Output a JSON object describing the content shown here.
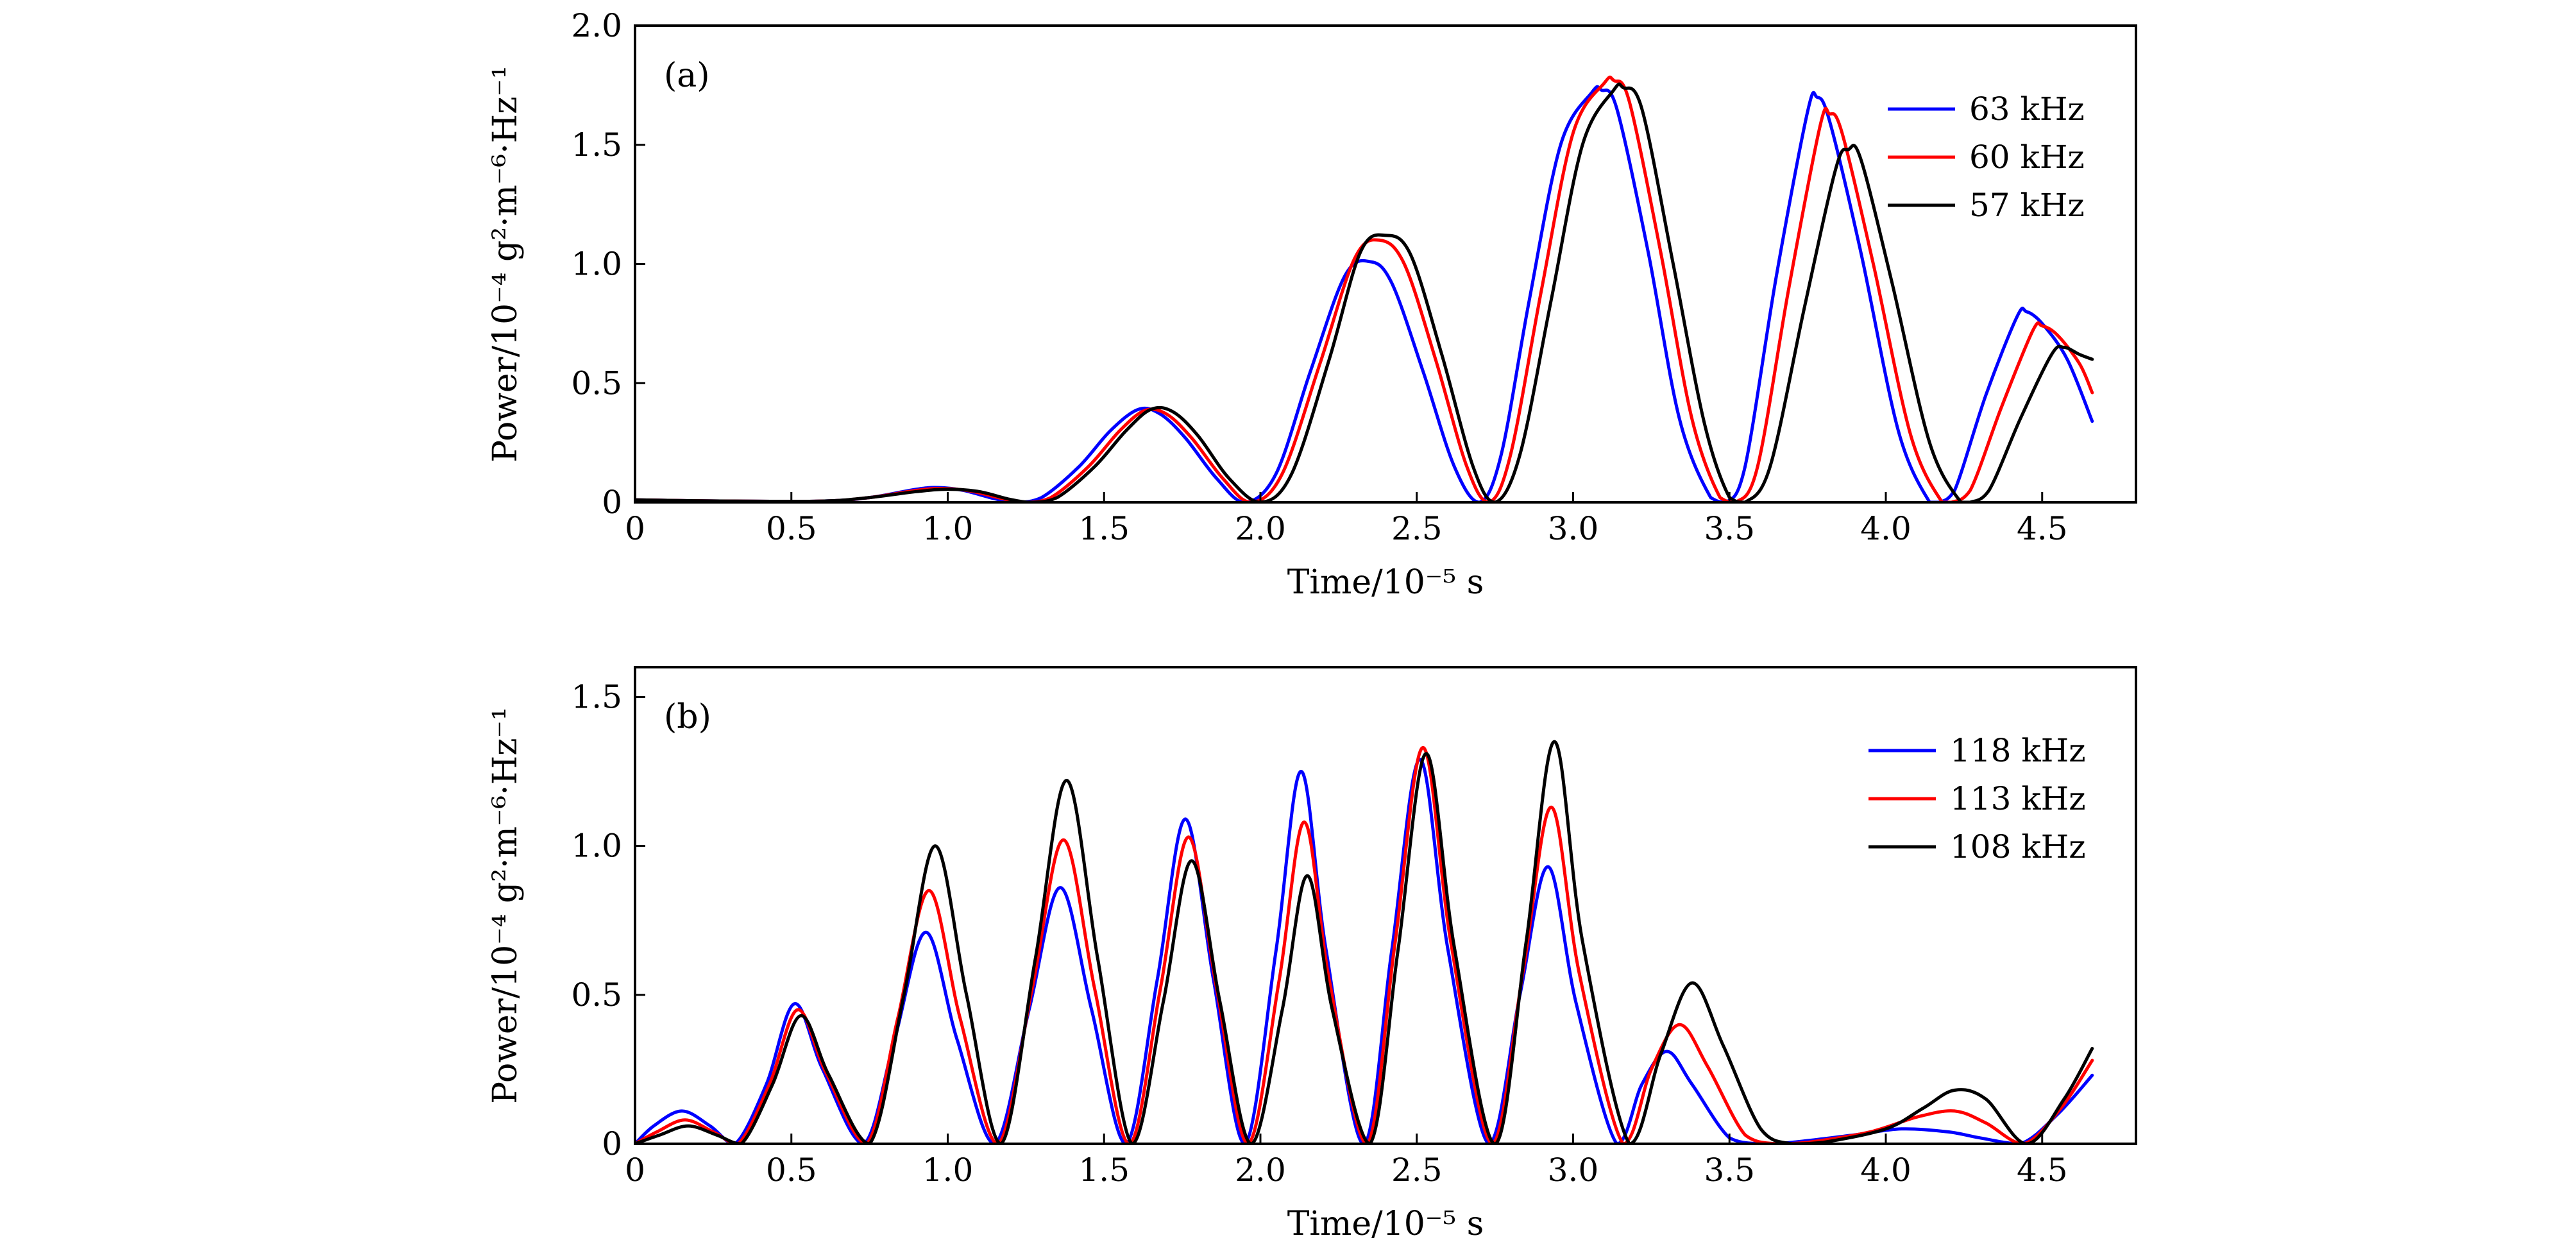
{
  "chart_data": [
    {
      "type": "line",
      "panel": "(a)",
      "xlabel": "Time/10⁻⁵ s",
      "ylabel": "Power/10⁻⁴ g²·m⁻⁶·Hz⁻¹",
      "xlim": [
        0,
        4.8
      ],
      "ylim": [
        0,
        2.0
      ],
      "xticks": [
        0,
        0.5,
        1.0,
        1.5,
        2.0,
        2.5,
        3.0,
        3.5,
        4.0,
        4.5
      ],
      "xtick_labels": [
        "0",
        "0.5",
        "1.0",
        "1.5",
        "2.0",
        "2.5",
        "3.0",
        "3.5",
        "4.0",
        "4.5"
      ],
      "yticks": [
        0,
        0.5,
        1.0,
        1.5,
        2.0
      ],
      "ytick_labels": [
        "0",
        "0.5",
        "1.0",
        "1.5",
        "2.0"
      ],
      "legend_position": "top-right",
      "series": [
        {
          "name": "63 kHz",
          "color": "#0000ff",
          "x": [
            0,
            0.3,
            0.6,
            0.75,
            0.9,
            0.97,
            1.05,
            1.15,
            1.22,
            1.3,
            1.42,
            1.52,
            1.61,
            1.68,
            1.76,
            1.86,
            1.95,
            2.05,
            2.16,
            2.27,
            2.35,
            2.42,
            2.52,
            2.62,
            2.7,
            2.77,
            2.86,
            2.96,
            3.06,
            3.09,
            3.14,
            3.24,
            3.34,
            3.44,
            3.49,
            3.55,
            3.65,
            3.75,
            3.78,
            3.82,
            3.92,
            4.04,
            4.14,
            4.17,
            4.22,
            4.32,
            4.42,
            4.45,
            4.5,
            4.58,
            4.66
          ],
          "values": [
            0.01,
            0.005,
            0.005,
            0.02,
            0.055,
            0.062,
            0.05,
            0.015,
            0.0,
            0.02,
            0.15,
            0.3,
            0.39,
            0.37,
            0.27,
            0.1,
            0.0,
            0.12,
            0.55,
            0.95,
            1.01,
            0.92,
            0.55,
            0.15,
            0.0,
            0.2,
            0.85,
            1.5,
            1.72,
            1.73,
            1.65,
            1.05,
            0.35,
            0.02,
            0.0,
            0.15,
            0.95,
            1.64,
            1.7,
            1.6,
            1.05,
            0.3,
            0.0,
            0.0,
            0.05,
            0.45,
            0.78,
            0.8,
            0.75,
            0.6,
            0.34
          ]
        },
        {
          "name": "60 kHz",
          "color": "#ff0000",
          "x": [
            0,
            0.3,
            0.6,
            0.75,
            0.9,
            0.98,
            1.07,
            1.18,
            1.25,
            1.33,
            1.45,
            1.55,
            1.63,
            1.7,
            1.78,
            1.88,
            1.97,
            2.07,
            2.19,
            2.3,
            2.38,
            2.46,
            2.56,
            2.66,
            2.73,
            2.8,
            2.9,
            3.0,
            3.1,
            3.13,
            3.18,
            3.28,
            3.38,
            3.47,
            3.52,
            3.59,
            3.69,
            3.79,
            3.82,
            3.86,
            3.96,
            4.08,
            4.18,
            4.21,
            4.27,
            4.37,
            4.47,
            4.5,
            4.55,
            4.62,
            4.66
          ],
          "values": [
            0.01,
            0.005,
            0.005,
            0.02,
            0.05,
            0.058,
            0.048,
            0.014,
            0.0,
            0.02,
            0.15,
            0.3,
            0.385,
            0.37,
            0.27,
            0.1,
            0.0,
            0.12,
            0.58,
            1.02,
            1.1,
            1.0,
            0.6,
            0.15,
            0.0,
            0.2,
            0.9,
            1.55,
            1.76,
            1.77,
            1.68,
            1.05,
            0.35,
            0.02,
            0.0,
            0.15,
            0.9,
            1.58,
            1.63,
            1.55,
            1.0,
            0.28,
            0.0,
            0.0,
            0.05,
            0.4,
            0.72,
            0.74,
            0.7,
            0.58,
            0.46
          ]
        },
        {
          "name": "57 kHz",
          "color": "#000000",
          "x": [
            0,
            0.3,
            0.6,
            0.75,
            0.9,
            1.0,
            1.1,
            1.2,
            1.27,
            1.35,
            1.47,
            1.57,
            1.65,
            1.72,
            1.8,
            1.9,
            2.0,
            2.1,
            2.22,
            2.32,
            2.4,
            2.48,
            2.58,
            2.68,
            2.75,
            2.83,
            2.93,
            3.03,
            3.13,
            3.16,
            3.22,
            3.32,
            3.42,
            3.5,
            3.55,
            3.63,
            3.74,
            3.84,
            3.88,
            3.92,
            4.02,
            4.14,
            4.24,
            4.27,
            4.33,
            4.43,
            4.53,
            4.57,
            4.62,
            4.66
          ],
          "values": [
            0.01,
            0.005,
            0.005,
            0.02,
            0.045,
            0.055,
            0.045,
            0.012,
            0.0,
            0.02,
            0.15,
            0.3,
            0.39,
            0.38,
            0.28,
            0.1,
            0.0,
            0.12,
            0.6,
            1.05,
            1.12,
            1.04,
            0.62,
            0.15,
            0.0,
            0.2,
            0.85,
            1.5,
            1.73,
            1.74,
            1.65,
            1.0,
            0.33,
            0.02,
            0.0,
            0.15,
            0.82,
            1.4,
            1.48,
            1.44,
            0.92,
            0.25,
            0.0,
            0.0,
            0.05,
            0.35,
            0.62,
            0.65,
            0.62,
            0.6
          ]
        }
      ]
    },
    {
      "type": "line",
      "panel": "(b)",
      "xlabel": "Time/10⁻⁵ s",
      "ylabel": "Power/10⁻⁴ g²·m⁻⁶·Hz⁻¹",
      "xlim": [
        0,
        4.8
      ],
      "ylim": [
        0,
        1.6
      ],
      "xticks": [
        0,
        0.5,
        1.0,
        1.5,
        2.0,
        2.5,
        3.0,
        3.5,
        4.0,
        4.5
      ],
      "xtick_labels": [
        "0",
        "0.5",
        "1.0",
        "1.5",
        "2.0",
        "2.5",
        "3.0",
        "3.5",
        "4.0",
        "4.5"
      ],
      "yticks": [
        0,
        0.5,
        1.0,
        1.5
      ],
      "ytick_labels": [
        "0",
        "0.5",
        "1.0",
        "1.5"
      ],
      "legend_position": "top-right",
      "series": [
        {
          "name": "118 kHz",
          "color": "#0000ff",
          "x": [
            0,
            0.06,
            0.15,
            0.24,
            0.32,
            0.42,
            0.51,
            0.6,
            0.73,
            0.83,
            0.93,
            1.03,
            1.15,
            1.26,
            1.36,
            1.46,
            1.57,
            1.67,
            1.76,
            1.85,
            1.95,
            2.05,
            2.13,
            2.21,
            2.33,
            2.42,
            2.51,
            2.6,
            2.73,
            2.83,
            2.92,
            3.01,
            3.14,
            3.22,
            3.3,
            3.38,
            3.5,
            3.6,
            3.7,
            3.9,
            4.05,
            4.2,
            4.3,
            4.43,
            4.55,
            4.66
          ],
          "values": [
            0.0,
            0.06,
            0.11,
            0.06,
            0.0,
            0.2,
            0.47,
            0.25,
            0.0,
            0.35,
            0.71,
            0.35,
            0.0,
            0.45,
            0.86,
            0.45,
            0.0,
            0.55,
            1.09,
            0.55,
            0.0,
            0.65,
            1.25,
            0.65,
            0.0,
            0.65,
            1.29,
            0.65,
            0.0,
            0.5,
            0.93,
            0.47,
            0.0,
            0.2,
            0.31,
            0.2,
            0.02,
            0.0,
            0.005,
            0.03,
            0.05,
            0.04,
            0.02,
            0.0,
            0.1,
            0.23
          ]
        },
        {
          "name": "113 kHz",
          "color": "#ff0000",
          "x": [
            0,
            0.07,
            0.16,
            0.25,
            0.33,
            0.43,
            0.52,
            0.61,
            0.74,
            0.84,
            0.94,
            1.04,
            1.16,
            1.27,
            1.37,
            1.47,
            1.58,
            1.68,
            1.77,
            1.86,
            1.96,
            2.06,
            2.14,
            2.22,
            2.34,
            2.43,
            2.52,
            2.61,
            2.74,
            2.84,
            2.93,
            3.02,
            3.16,
            3.25,
            3.34,
            3.43,
            3.55,
            3.65,
            3.75,
            3.95,
            4.1,
            4.22,
            4.32,
            4.44,
            4.56,
            4.66
          ],
          "values": [
            0.0,
            0.04,
            0.08,
            0.04,
            0.0,
            0.2,
            0.45,
            0.24,
            0.0,
            0.42,
            0.85,
            0.42,
            0.0,
            0.52,
            1.02,
            0.52,
            0.0,
            0.52,
            1.03,
            0.52,
            0.0,
            0.55,
            1.08,
            0.55,
            0.0,
            0.67,
            1.33,
            0.67,
            0.0,
            0.58,
            1.13,
            0.57,
            0.0,
            0.25,
            0.4,
            0.26,
            0.03,
            0.0,
            0.005,
            0.04,
            0.09,
            0.11,
            0.07,
            0.0,
            0.12,
            0.28
          ]
        },
        {
          "name": "108 kHz",
          "color": "#000000",
          "x": [
            0,
            0.08,
            0.17,
            0.26,
            0.34,
            0.44,
            0.53,
            0.62,
            0.75,
            0.86,
            0.96,
            1.06,
            1.17,
            1.28,
            1.38,
            1.48,
            1.59,
            1.69,
            1.78,
            1.87,
            1.97,
            2.07,
            2.15,
            2.23,
            2.35,
            2.44,
            2.53,
            2.62,
            2.75,
            2.85,
            2.94,
            3.03,
            3.18,
            3.28,
            3.38,
            3.48,
            3.6,
            3.7,
            3.8,
            4.0,
            4.12,
            4.22,
            4.32,
            4.45,
            4.57,
            4.66
          ],
          "values": [
            0.0,
            0.03,
            0.06,
            0.03,
            0.0,
            0.2,
            0.43,
            0.23,
            0.0,
            0.5,
            1.0,
            0.5,
            0.0,
            0.62,
            1.22,
            0.62,
            0.0,
            0.48,
            0.95,
            0.48,
            0.0,
            0.45,
            0.9,
            0.45,
            0.0,
            0.65,
            1.31,
            0.66,
            0.0,
            0.68,
            1.35,
            0.68,
            0.0,
            0.3,
            0.54,
            0.33,
            0.05,
            0.0,
            0.005,
            0.05,
            0.12,
            0.18,
            0.15,
            0.0,
            0.15,
            0.32
          ]
        }
      ]
    }
  ]
}
